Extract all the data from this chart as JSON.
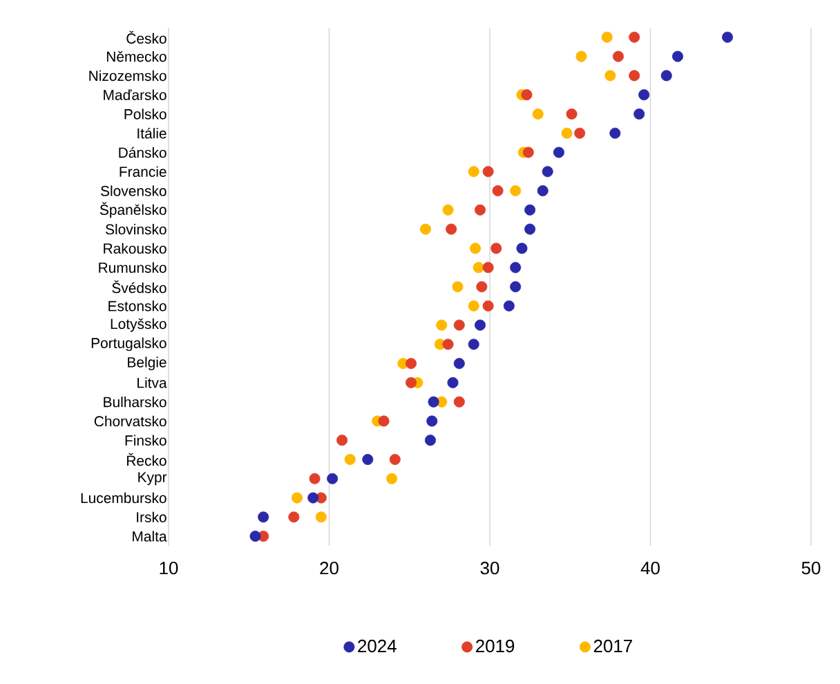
{
  "chart_data": {
    "type": "scatter",
    "orientation": "horizontal",
    "categories": [
      "Česko",
      "Německo",
      "Nizozemsko",
      "Maďarsko",
      "Polsko",
      "Itálie",
      "Dánsko",
      "Francie",
      "Slovensko",
      "Španělsko",
      "Slovinsko",
      "Rakousko",
      "Rumunsko",
      "Švédsko",
      "Estonsko",
      "Lotyšsko",
      "Portugalsko",
      "Belgie",
      "Litva",
      "Bulharsko",
      "Chorvatsko",
      "Finsko",
      "Řecko",
      "Kypr",
      "Lucembursko",
      "Irsko",
      "Malta"
    ],
    "series": [
      {
        "name": "2024",
        "color": "#2a2aa8",
        "values": [
          44.8,
          41.7,
          41.0,
          39.6,
          39.3,
          37.8,
          34.3,
          33.6,
          33.3,
          32.5,
          32.5,
          32.0,
          31.6,
          31.6,
          31.2,
          29.4,
          29.0,
          28.1,
          27.7,
          26.5,
          26.4,
          26.3,
          22.4,
          20.2,
          19.0,
          15.9,
          15.4
        ]
      },
      {
        "name": "2019",
        "color": "#e0402a",
        "values": [
          39.0,
          38.0,
          39.0,
          32.3,
          35.1,
          35.6,
          32.4,
          29.9,
          30.5,
          29.4,
          27.6,
          30.4,
          29.9,
          29.5,
          29.9,
          28.1,
          27.4,
          25.1,
          25.1,
          28.1,
          23.4,
          20.8,
          24.1,
          19.1,
          19.5,
          17.8,
          15.9
        ]
      },
      {
        "name": "2017",
        "color": "#ffb800",
        "values": [
          37.3,
          35.7,
          37.5,
          32.0,
          33.0,
          34.8,
          32.1,
          29.0,
          31.6,
          27.4,
          26.0,
          29.1,
          29.3,
          28.0,
          29.0,
          27.0,
          26.9,
          24.6,
          25.5,
          27.0,
          23.0,
          null,
          21.3,
          23.9,
          18.0,
          19.5,
          null
        ]
      }
    ],
    "xlim": [
      10,
      50
    ],
    "xticks": [
      10,
      20,
      30,
      40,
      50
    ],
    "grid": "x",
    "legend": "bottom",
    "marker": "circle"
  }
}
